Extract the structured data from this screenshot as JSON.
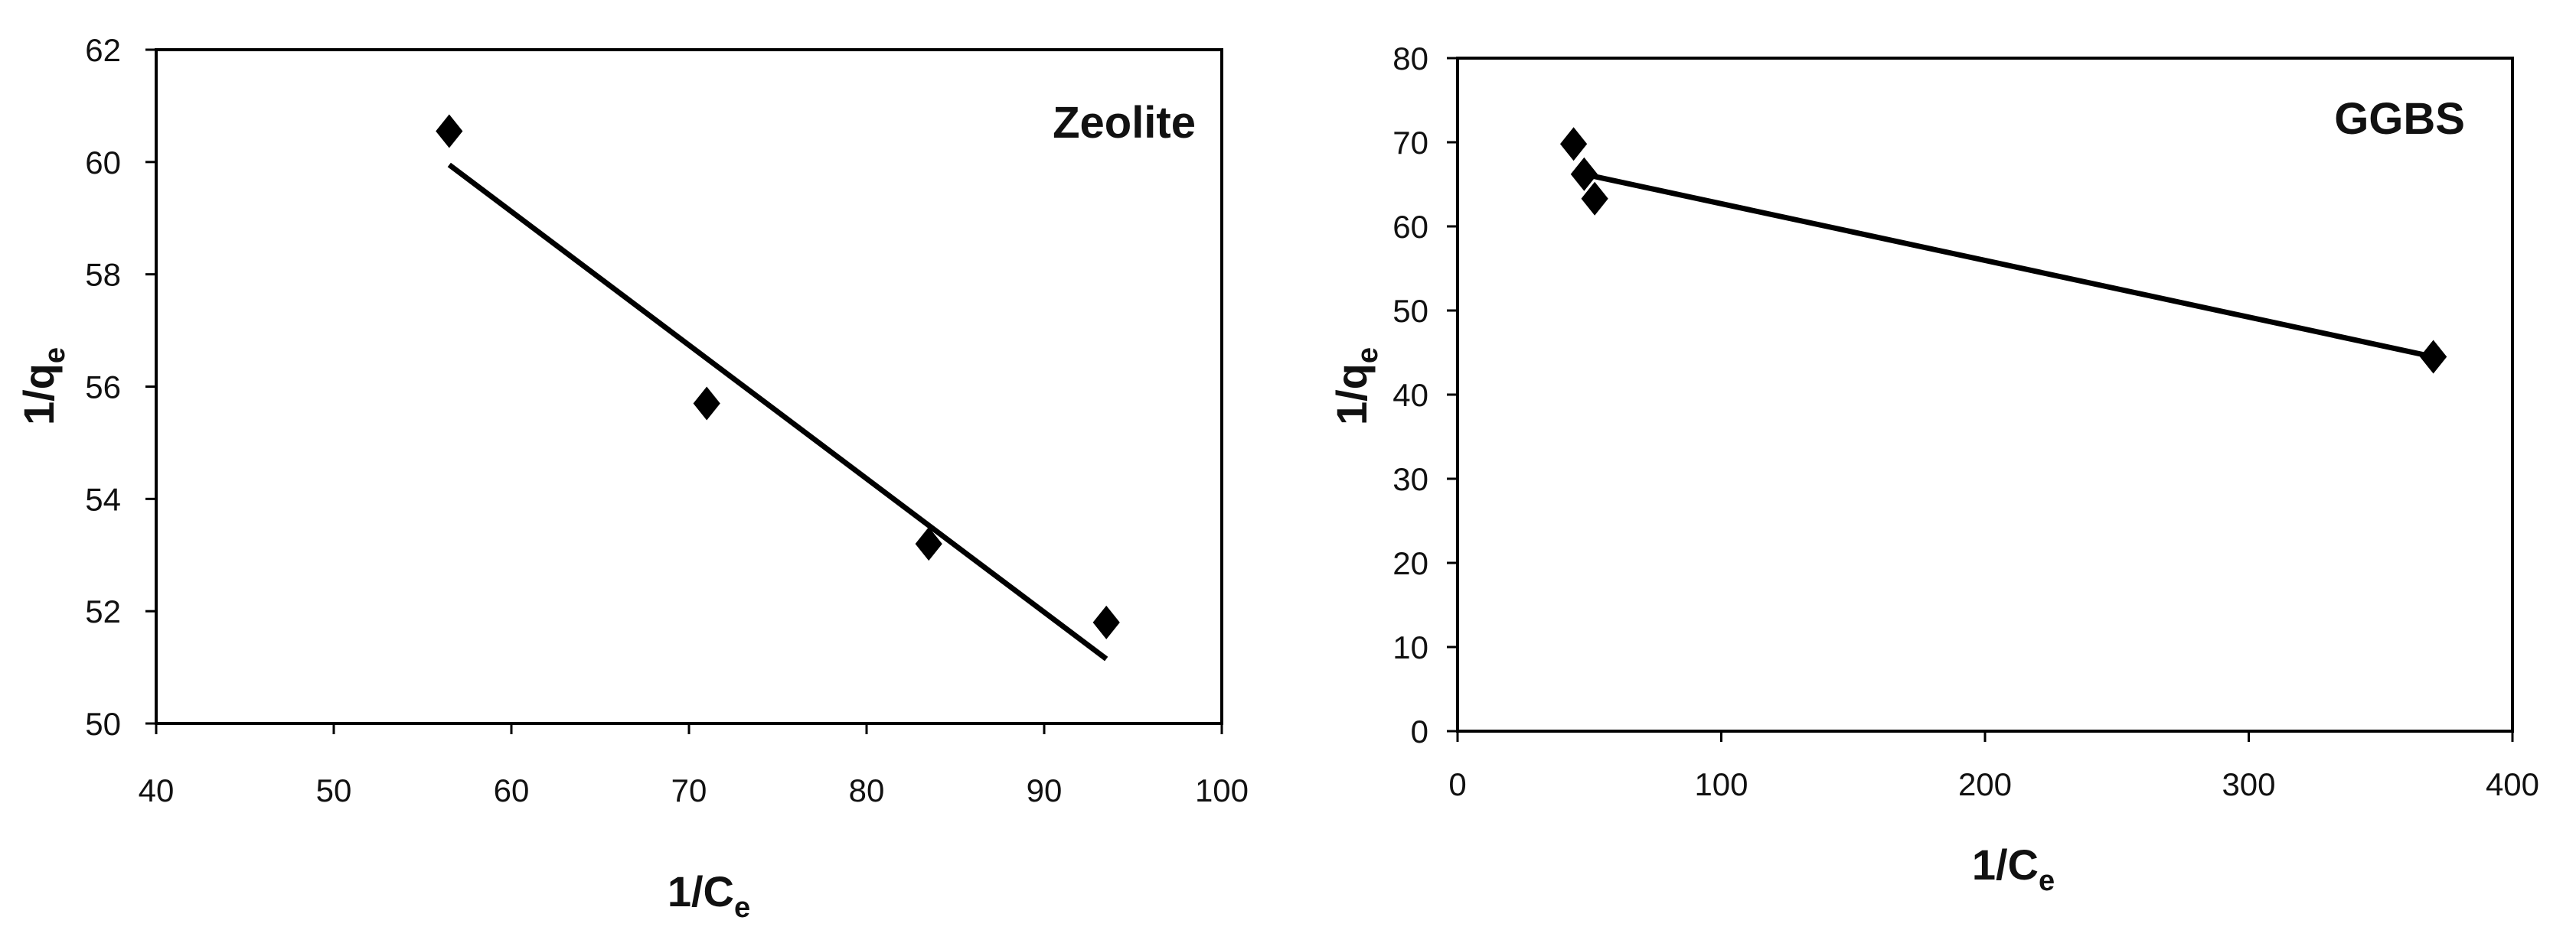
{
  "chart_data": [
    {
      "type": "scatter",
      "title": "Zeolite",
      "xlabel": "1/C",
      "xlabel_sub": "e",
      "ylabel": "1/q",
      "ylabel_sub": "e",
      "xlim": [
        40,
        100
      ],
      "ylim": [
        50,
        62
      ],
      "xticks": [
        40,
        50,
        60,
        70,
        80,
        90,
        100
      ],
      "yticks": [
        50,
        52,
        54,
        56,
        58,
        60,
        62
      ],
      "points": [
        {
          "x": 56.5,
          "y": 60.55
        },
        {
          "x": 71.0,
          "y": 55.7
        },
        {
          "x": 83.5,
          "y": 53.2
        },
        {
          "x": 93.5,
          "y": 51.8
        }
      ],
      "trendline": [
        {
          "x": 56.5,
          "y": 59.95
        },
        {
          "x": 93.5,
          "y": 51.15
        }
      ],
      "grid": false,
      "marker": "diamond"
    },
    {
      "type": "scatter",
      "title": "GGBS",
      "xlabel": "1/C",
      "xlabel_sub": "e",
      "ylabel": "1/q",
      "ylabel_sub": "e",
      "xlim": [
        0,
        400
      ],
      "ylim": [
        0,
        80
      ],
      "xticks": [
        0,
        100,
        200,
        300,
        400
      ],
      "yticks": [
        0,
        10,
        20,
        30,
        40,
        50,
        60,
        70,
        80
      ],
      "points": [
        {
          "x": 44,
          "y": 69.8
        },
        {
          "x": 48,
          "y": 66.2
        },
        {
          "x": 52,
          "y": 63.3
        },
        {
          "x": 370,
          "y": 44.5
        }
      ],
      "trendline": [
        {
          "x": 48,
          "y": 66.2
        },
        {
          "x": 370,
          "y": 44.5
        }
      ],
      "grid": false,
      "marker": "diamond"
    }
  ]
}
